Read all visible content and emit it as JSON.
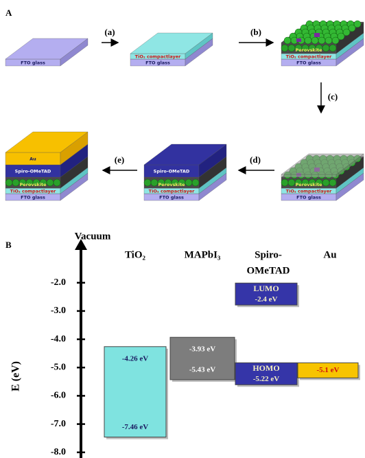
{
  "panel_a": {
    "label": "A",
    "steps": [
      "(a)",
      "(b)",
      "(c)",
      "(d)",
      "(e)"
    ],
    "layers": {
      "fto": "FTO glass",
      "tio2": "TiO₂ compactlayer",
      "perovskite": "Perovskite",
      "spiro": "Spiro-OMeTAD",
      "au": "Au"
    }
  },
  "panel_b": {
    "label": "B",
    "axis_title": "Vacuum",
    "axis_label": "E (eV)",
    "ylim": [
      -8.2,
      -0.5
    ],
    "yticks": [
      {
        "value": -2,
        "label": "-2.0"
      },
      {
        "value": -3,
        "label": "-3.0"
      },
      {
        "value": -4,
        "label": "-4.0"
      },
      {
        "value": -5,
        "label": "-5.0"
      },
      {
        "value": -6,
        "label": "-6.0"
      },
      {
        "value": -7,
        "label": "-7.0"
      },
      {
        "value": -8,
        "label": "-8.0"
      }
    ],
    "materials": [
      {
        "name_lines": [
          "TiO₂"
        ],
        "color": "#7fe3e0",
        "label_color": "#1a1a60",
        "band": [
          {
            "value": -4.26,
            "label": "-4.26 eV"
          },
          {
            "value": -7.46,
            "label": "-7.46 eV"
          }
        ]
      },
      {
        "name_lines": [
          "MAPbI₃"
        ],
        "color": "#7d7d7d",
        "label_color": "#ffffff",
        "band": [
          {
            "value": -3.93,
            "label": "-3.93 eV"
          },
          {
            "value": -5.43,
            "label": "-5.43 eV"
          }
        ]
      },
      {
        "name_lines": [
          "Spiro-",
          "OMeTAD"
        ],
        "color": "#3535a8",
        "label_color": "#f5f0c0",
        "levels": [
          {
            "title": "LUMO",
            "value": -2.4,
            "label": "-2.4 eV"
          },
          {
            "title": "HOMO",
            "value": -5.22,
            "label": "-5.22 eV"
          }
        ]
      },
      {
        "name_lines": [
          "Au"
        ],
        "color": "#f7c400",
        "label_color": "#d01010",
        "levels": [
          {
            "value": -5.1,
            "label": "-5.1 eV"
          }
        ]
      }
    ]
  }
}
